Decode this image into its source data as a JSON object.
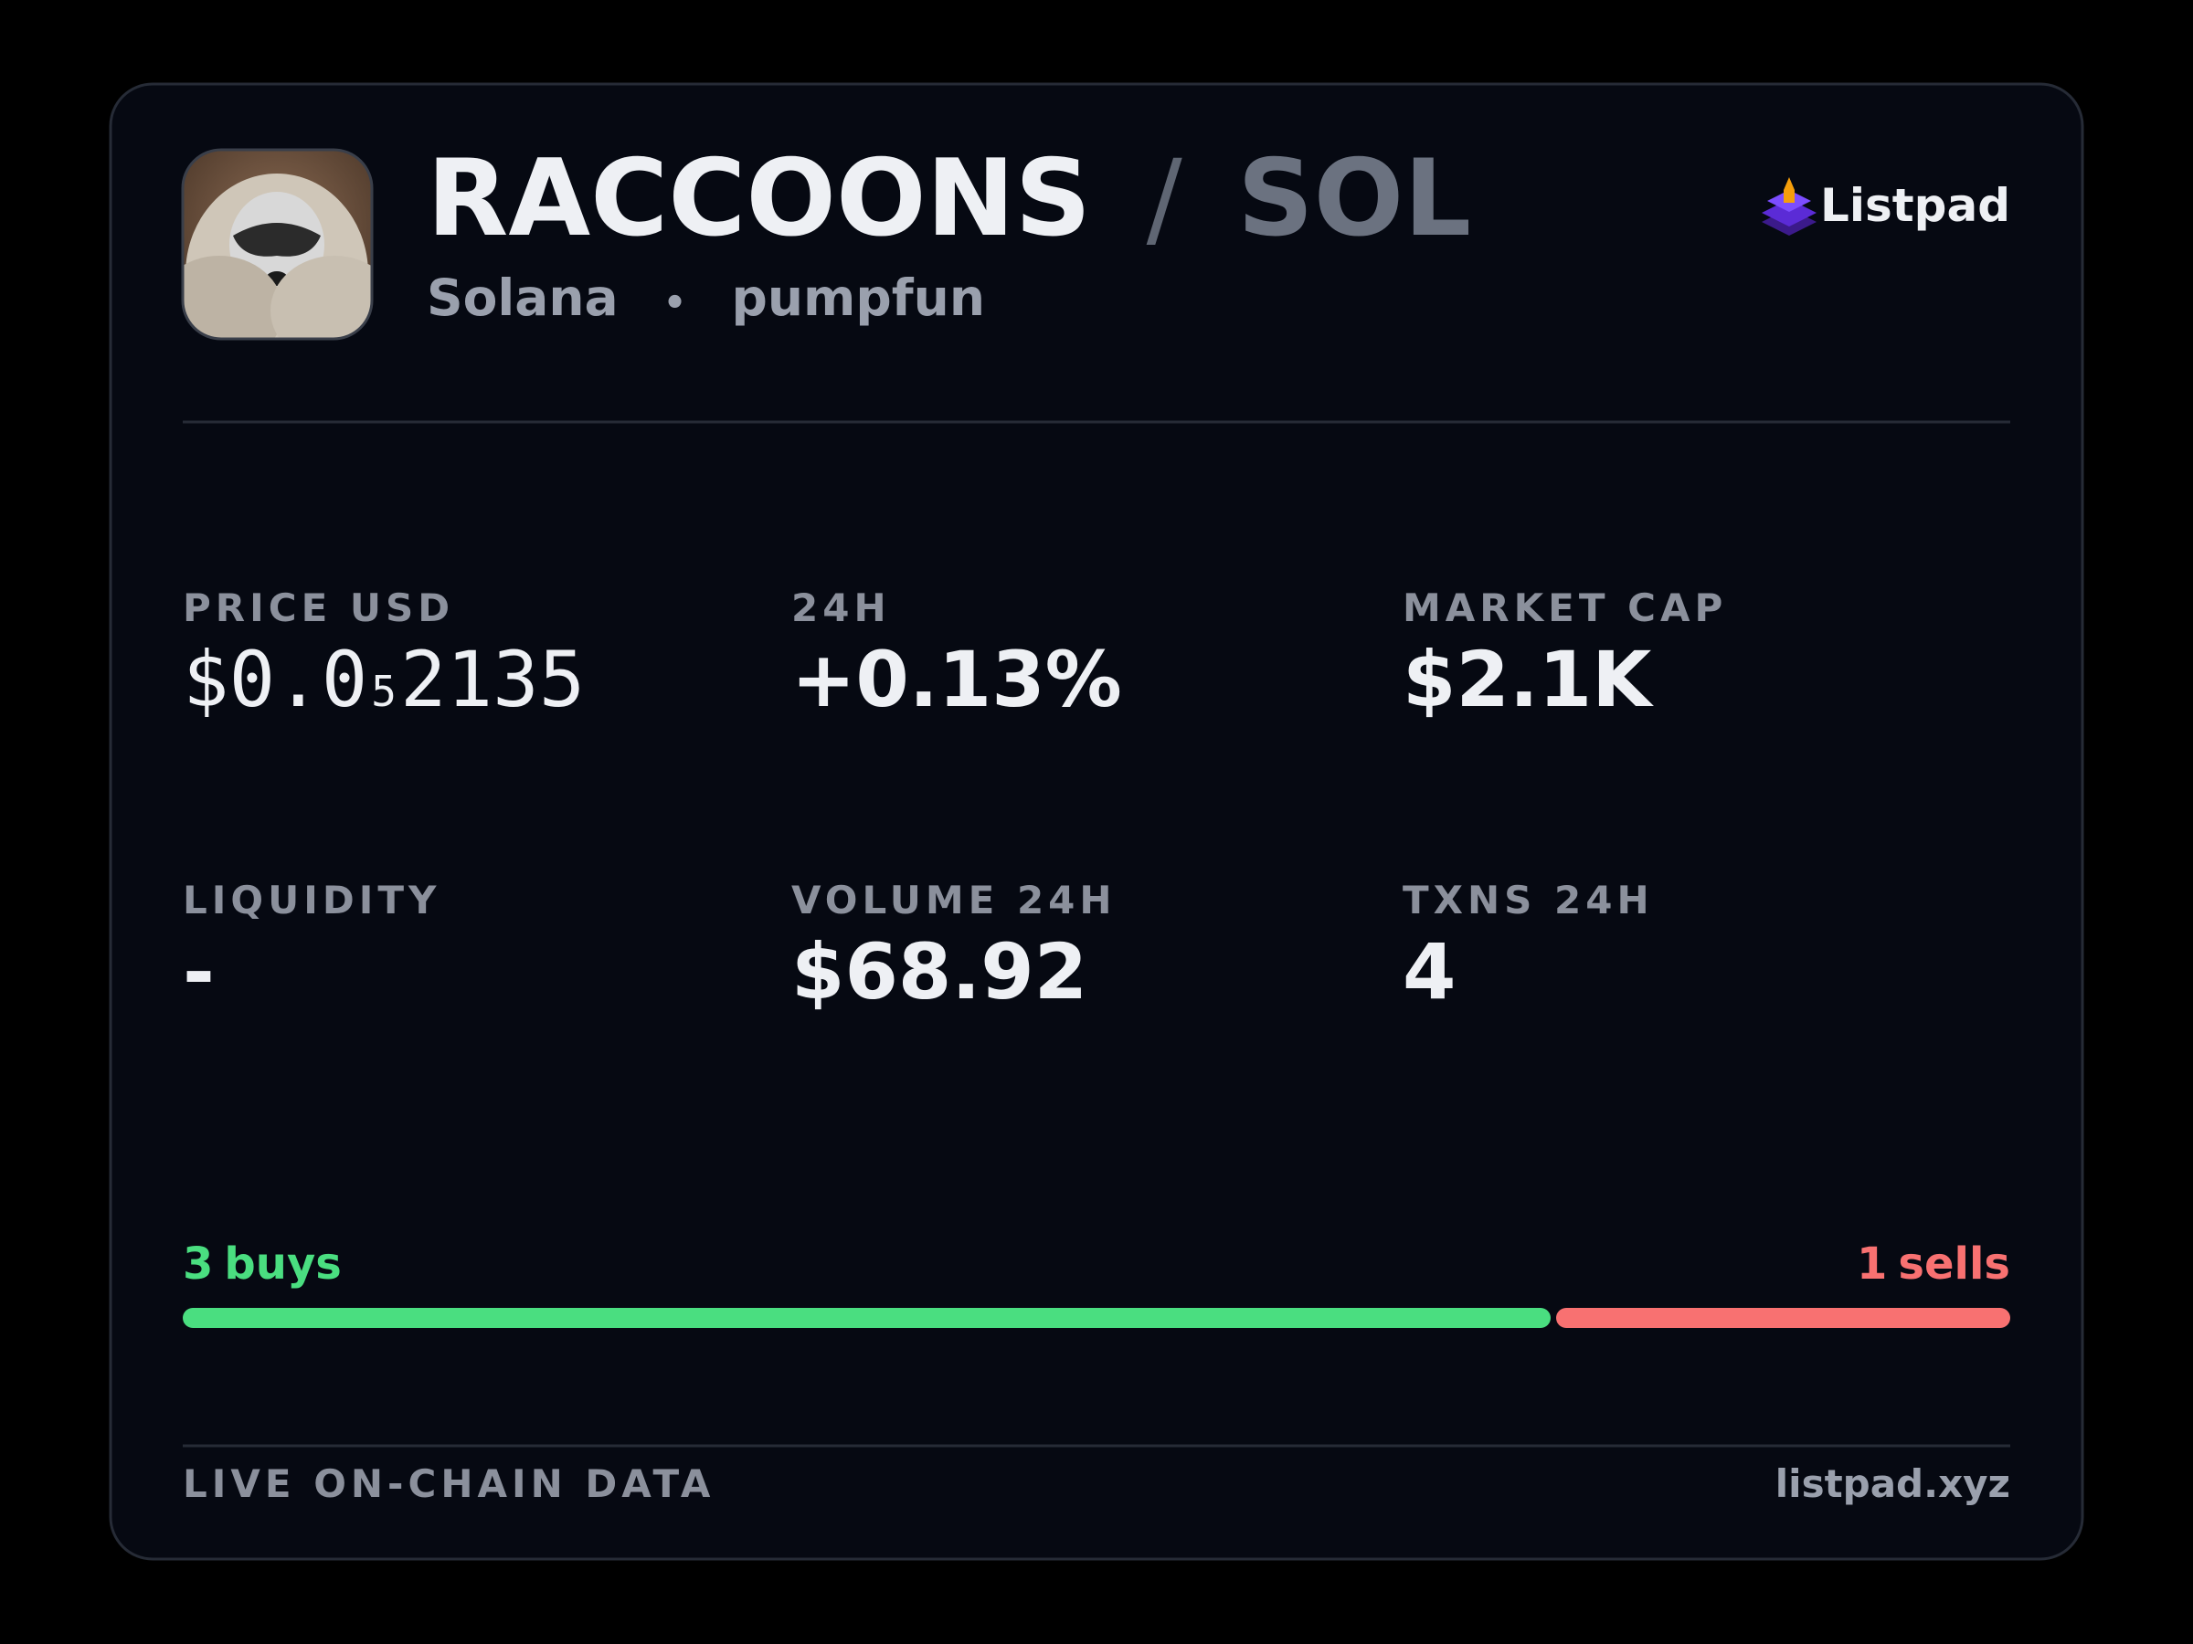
{
  "header": {
    "symbol": "RACCOONS",
    "separator": "/",
    "quote": "SOL",
    "chain": "Solana",
    "dot": "•",
    "dex": "pumpfun",
    "brand": "Listpad"
  },
  "price": {
    "label": "PRICE USD",
    "prefix": "$0.0",
    "zeros": "5",
    "digits": "2135"
  },
  "stats": [
    {
      "label": "24H",
      "value": "+0.13%",
      "color": "#4ade80"
    },
    {
      "label": "MARKET CAP",
      "value": "$2.1K"
    },
    {
      "label": "LIQUIDITY",
      "value": "-"
    },
    {
      "label": "VOLUME 24H",
      "value": "$68.92"
    },
    {
      "label": "TXNS 24H",
      "value": 4
    }
  ],
  "trades": {
    "buys": {
      "count": 3,
      "label": "buys",
      "color": "#4ade80"
    },
    "sells": {
      "count": 1,
      "label": "sells",
      "color": "#f87171"
    }
  },
  "footer": {
    "note": "LIVE ON-CHAIN DATA",
    "site": "listpad.xyz"
  }
}
